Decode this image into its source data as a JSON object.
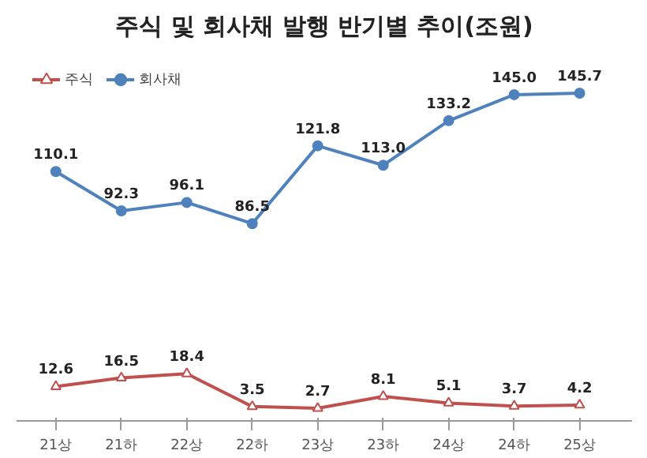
{
  "chart_data": {
    "type": "line",
    "title": "주식 및 회사채 발행 반기별 추이(조원)",
    "categories": [
      "21상",
      "21하",
      "22상",
      "22하",
      "23상",
      "23하",
      "24상",
      "24하",
      "25상"
    ],
    "series": [
      {
        "name": "주식",
        "color": "#c0504d",
        "marker": "triangle",
        "values": [
          12.6,
          16.5,
          18.4,
          3.5,
          2.7,
          8.1,
          5.1,
          3.7,
          4.2
        ],
        "value_labels": [
          "12.6",
          "16.5",
          "18.4",
          "3.5",
          "2.7",
          "8.1",
          "5.1",
          "3.7",
          "4.2"
        ]
      },
      {
        "name": "회사채",
        "color": "#4f81bd",
        "marker": "circle",
        "values": [
          110.1,
          92.3,
          96.1,
          86.5,
          121.8,
          113.0,
          133.2,
          145.0,
          145.7
        ],
        "value_labels": [
          "110.1",
          "92.3",
          "96.1",
          "86.5",
          "121.8",
          "113.0",
          "133.2",
          "145.0",
          "145.7"
        ]
      }
    ],
    "legend": "top left",
    "tick_labels": "x",
    "grid": false,
    "line_style": "solid"
  }
}
